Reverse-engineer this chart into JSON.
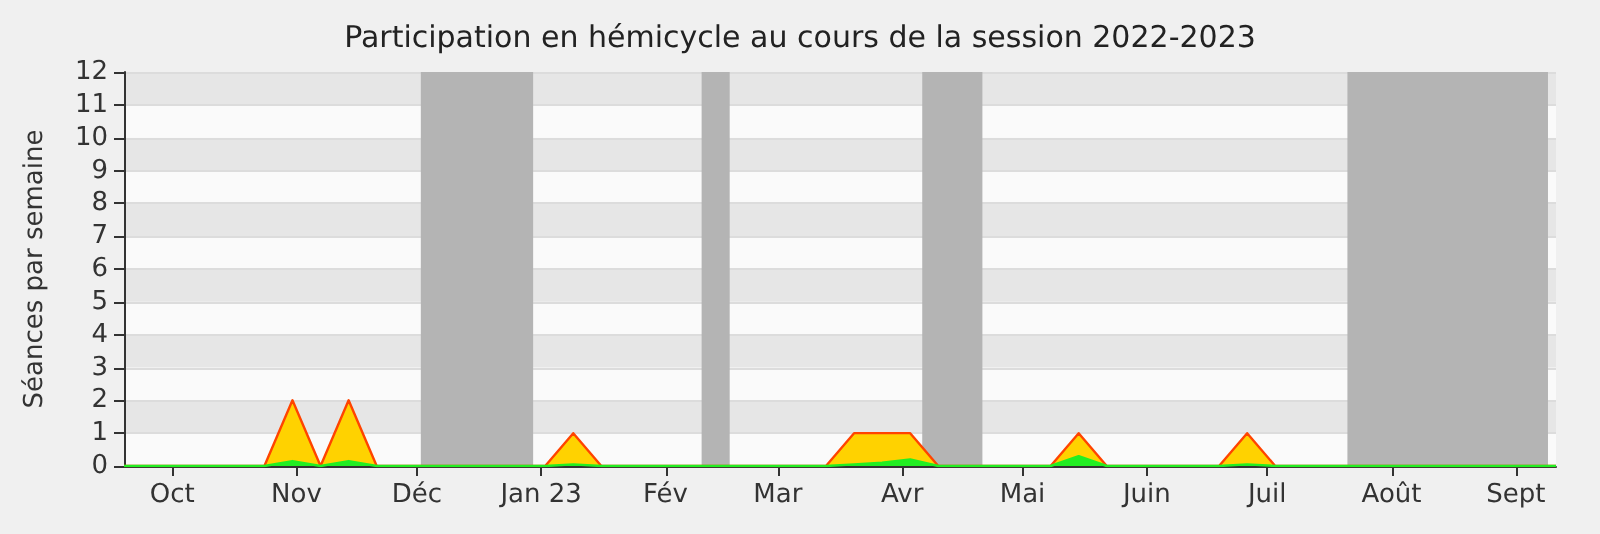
{
  "chart_data": {
    "type": "area",
    "title": "Participation en hémicycle au cours de la session 2022-2023",
    "ylabel": "Séances par semaine",
    "x": [
      "2022-09-19",
      "2022-09-26",
      "2022-10-03",
      "2022-10-10",
      "2022-10-17",
      "2022-10-24",
      "2022-10-31",
      "2022-11-07",
      "2022-11-14",
      "2022-11-21",
      "2022-11-28",
      "2022-12-05",
      "2022-12-12",
      "2022-12-19",
      "2022-12-26",
      "2023-01-02",
      "2023-01-09",
      "2023-01-16",
      "2023-01-23",
      "2023-01-30",
      "2023-02-06",
      "2023-02-13",
      "2023-02-20",
      "2023-02-27",
      "2023-03-06",
      "2023-03-13",
      "2023-03-20",
      "2023-03-27",
      "2023-04-03",
      "2023-04-10",
      "2023-04-17",
      "2023-04-24",
      "2023-05-01",
      "2023-05-08",
      "2023-05-15",
      "2023-05-22",
      "2023-05-29",
      "2023-06-05",
      "2023-06-12",
      "2023-06-19",
      "2023-06-26",
      "2023-07-03",
      "2023-07-10",
      "2023-07-17",
      "2023-07-24",
      "2023-07-31",
      "2023-08-07",
      "2023-08-14",
      "2023-08-21",
      "2023-08-28",
      "2023-09-04",
      "2023-09-11"
    ],
    "series": [
      {
        "color": "#ffd200",
        "values": [
          0,
          0,
          0,
          0,
          0,
          0,
          2,
          0,
          2,
          0,
          0,
          0,
          0,
          0,
          0,
          0,
          1,
          0,
          0,
          0,
          0,
          0,
          0,
          0,
          0,
          0,
          1,
          1,
          1,
          0,
          0,
          0,
          0,
          0,
          1,
          0,
          0,
          0,
          0,
          0,
          1,
          0,
          0,
          0,
          0,
          0,
          0,
          0,
          0,
          0,
          0,
          0
        ]
      },
      {
        "color": "#22ee22",
        "values": [
          0,
          0,
          0,
          0,
          0,
          0,
          0.15,
          0,
          0.15,
          0,
          0,
          0,
          0,
          0,
          0,
          0,
          0.05,
          0,
          0,
          0,
          0,
          0,
          0,
          0,
          0,
          0,
          0.05,
          0.1,
          0.2,
          0,
          0,
          0,
          0,
          0,
          0.3,
          0,
          0,
          0,
          0,
          0,
          0.05,
          0,
          0,
          0,
          0,
          0,
          0,
          0,
          0,
          0,
          0,
          0
        ]
      }
    ],
    "xlim": [
      "2022-09-19",
      "2023-09-11"
    ],
    "xticks": [
      {
        "value": "2022-10-01",
        "label": "Oct"
      },
      {
        "value": "2022-11-01",
        "label": "Nov"
      },
      {
        "value": "2022-12-01",
        "label": "Déc"
      },
      {
        "value": "2023-01-01",
        "label": "Jan 23"
      },
      {
        "value": "2023-02-01",
        "label": "Fév"
      },
      {
        "value": "2023-03-01",
        "label": "Mar"
      },
      {
        "value": "2023-04-01",
        "label": "Avr"
      },
      {
        "value": "2023-05-01",
        "label": "Mai"
      },
      {
        "value": "2023-06-01",
        "label": "Juin"
      },
      {
        "value": "2023-07-01",
        "label": "Juil"
      },
      {
        "value": "2023-08-01",
        "label": "Août"
      },
      {
        "value": "2023-09-01",
        "label": "Sept"
      }
    ],
    "ylim": [
      0,
      12
    ],
    "yticks": [
      0,
      1,
      2,
      3,
      4,
      5,
      6,
      7,
      8,
      9,
      10,
      11,
      12
    ],
    "bands": [
      {
        "axis": "x",
        "from": "2022-12-02",
        "to": "2022-12-30",
        "color": "#b4b4b4"
      },
      {
        "axis": "x",
        "from": "2023-02-10",
        "to": "2023-02-17",
        "color": "#b4b4b4"
      },
      {
        "axis": "x",
        "from": "2023-04-06",
        "to": "2023-04-21",
        "color": "#b4b4b4"
      },
      {
        "axis": "x",
        "from": "2023-07-21",
        "to": "2023-09-09",
        "color": "#b4b4b4"
      }
    ],
    "grid": "y"
  }
}
